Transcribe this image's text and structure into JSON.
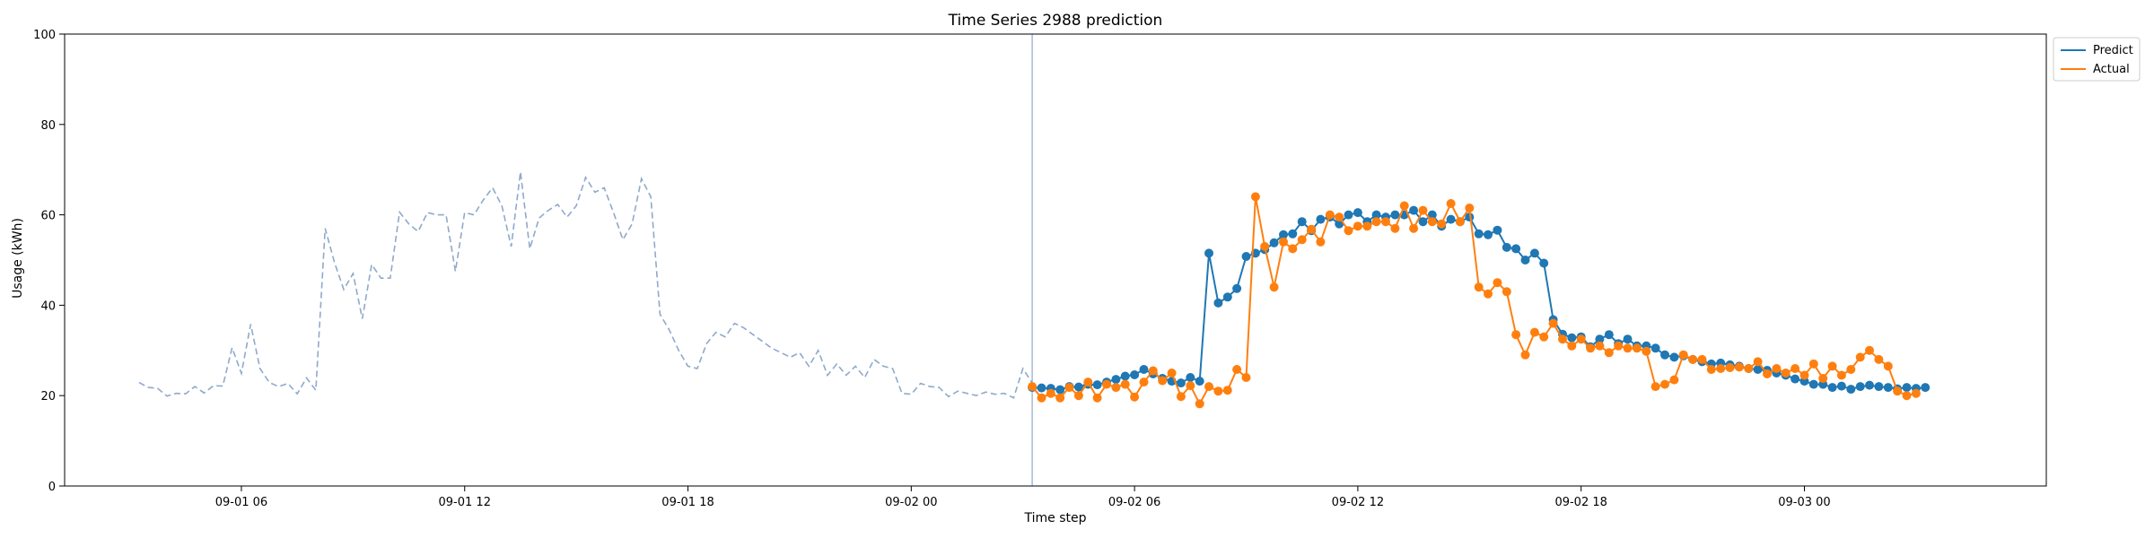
{
  "chart_data": {
    "type": "line",
    "title": "Time Series 2988 prediction",
    "xlabel": "Time step",
    "ylabel": "Usage (kWh)",
    "ylim": [
      0,
      100
    ],
    "yticks": [
      0,
      20,
      40,
      60,
      80,
      100
    ],
    "xlim": [
      "2023-09-01T01:15",
      "2023-09-03T06:30"
    ],
    "xticks": [
      {
        "t": "2023-09-01T06:00",
        "label": "09-01 06"
      },
      {
        "t": "2023-09-01T12:00",
        "label": "09-01 12"
      },
      {
        "t": "2023-09-01T18:00",
        "label": "09-01 18"
      },
      {
        "t": "2023-09-02T00:00",
        "label": "09-02 00"
      },
      {
        "t": "2023-09-02T06:00",
        "label": "09-02 06"
      },
      {
        "t": "2023-09-02T12:00",
        "label": "09-02 12"
      },
      {
        "t": "2023-09-02T18:00",
        "label": "09-02 18"
      },
      {
        "t": "2023-09-03T00:00",
        "label": "09-03 00"
      }
    ],
    "grid": false,
    "legend_position": "outside-top-right",
    "forecast_start": "2023-09-02T03:15",
    "step_minutes": 15,
    "history": {
      "start": "2023-09-01T03:15",
      "style": "dashed",
      "color": "#8fa9cc",
      "values": [
        22.9,
        21.8,
        21.6,
        19.9,
        20.5,
        20.4,
        22.0,
        20.6,
        22.2,
        22.1,
        30.6,
        24.9,
        35.8,
        26.0,
        22.9,
        22.0,
        22.7,
        20.4,
        23.9,
        21.2,
        57.0,
        49.5,
        43.5,
        47.0,
        37.0,
        49.0,
        46.0,
        46.0,
        60.6,
        58.0,
        56.3,
        60.5,
        60.0,
        60.0,
        47.5,
        60.5,
        60.0,
        63.3,
        66.0,
        62.0,
        53.0,
        69.5,
        52.5,
        59.3,
        61.0,
        62.3,
        59.5,
        62.0,
        68.3,
        65.0,
        66.0,
        60.5,
        54.5,
        58.0,
        68.0,
        64.0,
        38.0,
        34.5,
        30.0,
        26.5,
        26.0,
        31.5,
        34.0,
        33.0,
        36.0,
        35.0,
        33.5,
        32.0,
        30.5,
        29.5,
        28.5,
        29.5,
        26.5,
        30.0,
        24.5,
        27.0,
        24.5,
        26.5,
        24.0,
        28.0,
        26.5,
        26.0,
        20.5,
        20.3,
        22.7,
        22.0,
        21.8,
        19.8,
        21.0,
        20.5,
        20.0,
        20.8,
        20.3,
        20.5,
        19.5,
        26.0,
        22.8
      ]
    },
    "series": [
      {
        "name": "Predict",
        "color": "#1f77b4",
        "start": "2023-09-02T03:15",
        "values": [
          21.8,
          21.7,
          21.6,
          21.3,
          22.0,
          21.9,
          22.5,
          22.4,
          23.0,
          23.6,
          24.3,
          24.6,
          25.8,
          24.8,
          23.8,
          23.2,
          22.8,
          24.0,
          23.2,
          51.5,
          40.5,
          41.8,
          43.7,
          50.8,
          51.5,
          52.3,
          53.8,
          55.6,
          55.8,
          58.5,
          56.5,
          59.0,
          59.5,
          58.0,
          60.0,
          60.5,
          58.5,
          60.0,
          59.5,
          60.0,
          60.0,
          61.0,
          58.5,
          60.0,
          57.5,
          59.0,
          58.5,
          59.5,
          55.8,
          55.6,
          56.6,
          52.8,
          52.5,
          50.0,
          51.5,
          49.3,
          36.8,
          33.6,
          32.8,
          33.0,
          30.8,
          32.5,
          33.5,
          31.5,
          32.5,
          31.0,
          31.0,
          30.5,
          29.0,
          28.5,
          28.8,
          28.0,
          27.5,
          27.0,
          27.2,
          26.8,
          26.5,
          26.0,
          25.8,
          25.6,
          25.0,
          24.5,
          23.7,
          23.2,
          22.5,
          22.5,
          21.8,
          22.1,
          21.4,
          22.0,
          22.3,
          22.0,
          21.8,
          21.5,
          21.8,
          21.6,
          21.8
        ]
      },
      {
        "name": "Actual",
        "color": "#ff7f0e",
        "start": "2023-09-02T03:15",
        "values": [
          22.0,
          19.5,
          20.5,
          19.5,
          21.8,
          20.0,
          23.0,
          19.5,
          22.5,
          21.8,
          22.5,
          19.7,
          23.0,
          25.5,
          23.3,
          25.0,
          19.8,
          22.2,
          18.2,
          22.0,
          21.0,
          21.2,
          25.8,
          24.0,
          64.0,
          53.0,
          44.0,
          54.0,
          52.5,
          54.5,
          56.8,
          54.0,
          60.0,
          59.5,
          56.5,
          57.5,
          57.5,
          58.5,
          58.5,
          57.0,
          62.0,
          57.0,
          61.0,
          58.5,
          58.0,
          62.5,
          58.5,
          61.5,
          44.0,
          42.5,
          45.0,
          43.0,
          33.5,
          29.0,
          34.0,
          33.0,
          36.0,
          32.5,
          31.0,
          32.5,
          30.5,
          31.0,
          29.5,
          31.0,
          30.5,
          30.5,
          29.8,
          22.0,
          22.5,
          23.5,
          29.0,
          28.0,
          28.0,
          25.8,
          26.0,
          26.2,
          26.3,
          26.0,
          27.5,
          24.8,
          26.0,
          25.0,
          26.0,
          24.5,
          27.0,
          23.8,
          26.5,
          24.5,
          25.8,
          28.5,
          30.0,
          28.0,
          26.5,
          21.0,
          20.0,
          20.5
        ]
      }
    ]
  }
}
